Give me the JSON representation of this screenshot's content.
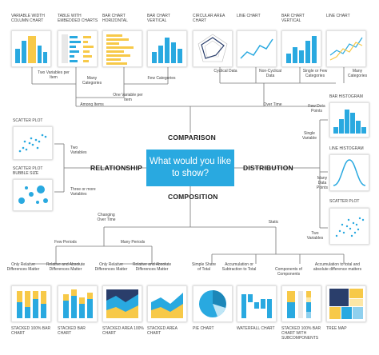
{
  "center": {
    "question": "What would you like to show?"
  },
  "categories": {
    "comparison": "COMPARISON",
    "relationship": "RELATIONSHIP",
    "distribution": "DISTRIBUTION",
    "composition": "COMPOSITION"
  },
  "comparison": {
    "charts": [
      "VARIABLE WIDTH COLUMN CHART",
      "TABLE WITH EMBEDDED CHARTS",
      "BAR CHART HORIZONTAL",
      "BAR CHART VERTICAL",
      "CIRCULAR AREA CHART",
      "LINE CHART",
      "BAR CHART VERTICAL",
      "LINE CHART"
    ],
    "notes": {
      "two_vars": "Two Variables per Item",
      "many_cats": "Many Categories",
      "few_cats": "Few Categories",
      "one_var": "One Variable per Item",
      "among_items": "Among Items",
      "cyclical": "Cyclical Data",
      "non_cyclical": "Non-Cyclical Data",
      "single_few": "Single or Few Categories",
      "many_cats_time": "Many Categories",
      "over_time": "Over Time"
    }
  },
  "relationship": {
    "charts": [
      "SCATTER PLOT",
      "SCATTER PLOT BUBBLE SIZE"
    ],
    "notes": {
      "two_vars": "Two Variables",
      "three_vars": "Three or more Variables"
    }
  },
  "distribution": {
    "charts": [
      "BAR HISTOGRAM",
      "LINE HISTOGRAM",
      "SCATTER PLOT"
    ],
    "notes": {
      "few_points": "Few Data Points",
      "single_var": "Single Variable",
      "many_points": "Many Data Points",
      "two_vars": "Two Variables"
    }
  },
  "composition": {
    "charts": [
      "STACKED 100% BAR CHART",
      "STACKED BAR CHART",
      "STACKED AREA 100% CHART",
      "STACKED AREA CHART",
      "PIE CHART",
      "WATERFALL CHART",
      "STACKED 100% BAR CHART WITH SUBCOMPONENTS",
      "TREE MAP"
    ],
    "notes": {
      "changing": "Changing Over Time",
      "static": "Static",
      "few_periods": "Few Periods",
      "many_periods": "Many Periods",
      "only_relative_1": "Only Relative Differences Matter",
      "rel_abs_1": "Relative and Absolute Differences Matter",
      "only_relative_2": "Only Relative Differences Matter",
      "rel_abs_2": "Relative and Absolute Differences Matter",
      "simple_share": "Simple Share of Total",
      "accumulation": "Accumulation or Subtraction to Total",
      "components": "Components of Components",
      "accum_abs": "Accumulation to total and absolute difference matters"
    }
  },
  "colors": {
    "blue": "#29a9e0",
    "yellow": "#f7c948",
    "dark": "#2a3e6b",
    "line": "#777777"
  }
}
